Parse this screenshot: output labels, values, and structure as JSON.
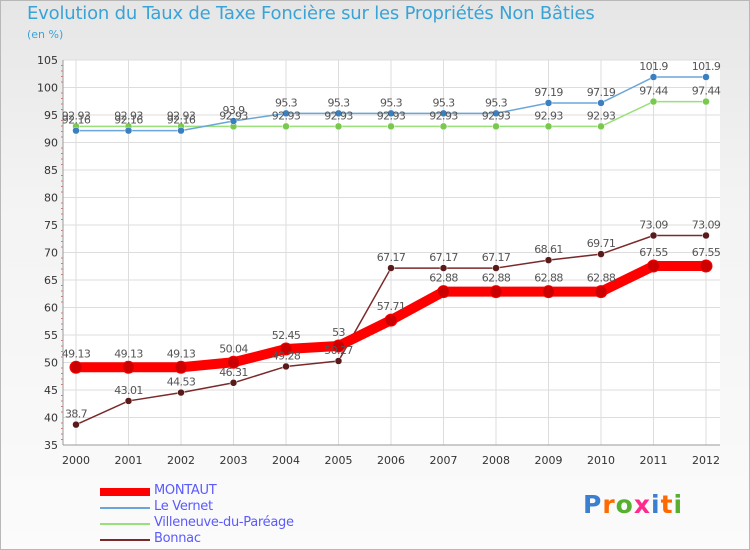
{
  "chart_data": {
    "type": "line",
    "title": "Evolution du Taux de Taxe Foncière sur les Propriétés Non Bâties",
    "subtitle": "(en %)",
    "categories": [
      "2000",
      "2001",
      "2002",
      "2003",
      "2004",
      "2005",
      "2006",
      "2007",
      "2008",
      "2009",
      "2010",
      "2011",
      "2012"
    ],
    "ylim": [
      35,
      105
    ],
    "yticks": [
      35,
      40,
      45,
      50,
      55,
      60,
      65,
      70,
      75,
      80,
      85,
      90,
      95,
      100,
      105
    ],
    "grid": true,
    "series": [
      {
        "name": "MONTAUT",
        "color": "#ff0000",
        "values": [
          49.13,
          49.13,
          49.13,
          50.04,
          52.45,
          53,
          57.71,
          62.88,
          62.88,
          62.88,
          62.88,
          67.55,
          67.55
        ],
        "labels": [
          "49.13",
          "49.13",
          "49.13",
          "50.04",
          "52.45",
          "53",
          "57.71",
          "62.88",
          "62.88",
          "62.88",
          "62.88",
          "67.55",
          "67.55"
        ]
      },
      {
        "name": "Le Vernet",
        "color": "#6aa6d8",
        "values": [
          92.16,
          92.16,
          92.16,
          93.9,
          95.3,
          95.3,
          95.3,
          95.3,
          95.3,
          97.19,
          97.19,
          101.9,
          101.9
        ],
        "labels": [
          "92.16",
          "92.16",
          "92.16",
          "93.9",
          "95.3",
          "95.3",
          "95.3",
          "95.3",
          "95.3",
          "97.19",
          "97.19",
          "101.9",
          "101.9"
        ]
      },
      {
        "name": "Villeneuve-du-Paréage",
        "color": "#99e07a",
        "values": [
          92.93,
          92.93,
          92.93,
          92.93,
          92.93,
          92.93,
          92.93,
          92.93,
          92.93,
          92.93,
          92.93,
          97.44,
          97.44
        ],
        "labels": [
          "92.93",
          "92.93",
          "92.93",
          "92.93",
          "92.93",
          "92.93",
          "92.93",
          "92.93",
          "92.93",
          "92.93",
          "92.93",
          "97.44",
          "97.44"
        ]
      },
      {
        "name": "Bonnac",
        "color": "#7a2a2a",
        "values": [
          38.7,
          43.01,
          44.53,
          46.31,
          49.28,
          50.27,
          67.17,
          67.17,
          67.17,
          68.61,
          69.71,
          73.09,
          73.09
        ],
        "labels": [
          "38.7",
          "43.01",
          "44.53",
          "46.31",
          "49.28",
          "50.27",
          "67.17",
          "67.17",
          "67.17",
          "68.61",
          "69.71",
          "73.09",
          "73.09"
        ]
      }
    ]
  },
  "legend": {
    "items": [
      "MONTAUT",
      "Le Vernet",
      "Villeneuve-du-Paréage",
      "Bonnac"
    ]
  },
  "logo": {
    "text": "Proxiti"
  }
}
